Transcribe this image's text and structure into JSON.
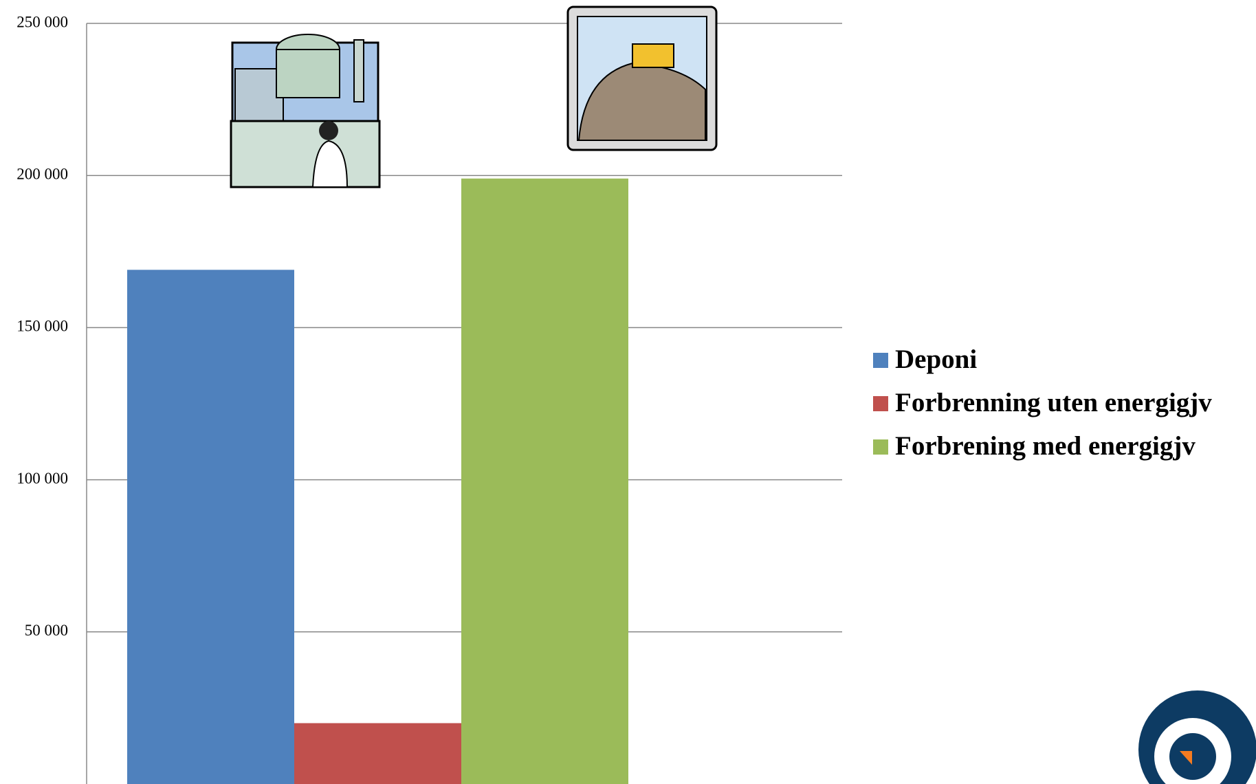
{
  "chart_data": {
    "type": "bar",
    "categories": [
      null
    ],
    "series": [
      {
        "name": "Deponi",
        "color": "#4f81bd",
        "values": [
          169000
        ]
      },
      {
        "name": "Forbrenning uten energigjv",
        "color": "#c0504d",
        "values": [
          20000
        ]
      },
      {
        "name": "Forbrening med energigjv",
        "color": "#9bbb59",
        "values": [
          199000
        ]
      }
    ],
    "ylim": [
      0,
      250000
    ],
    "yticks": [
      {
        "value": 50000,
        "label": "50 000"
      },
      {
        "value": 100000,
        "label": "100 000"
      },
      {
        "value": 150000,
        "label": "150 000"
      },
      {
        "value": 200000,
        "label": "200 000"
      },
      {
        "value": 250000,
        "label": "250 000"
      }
    ],
    "grid": true,
    "legend": "right"
  }
}
